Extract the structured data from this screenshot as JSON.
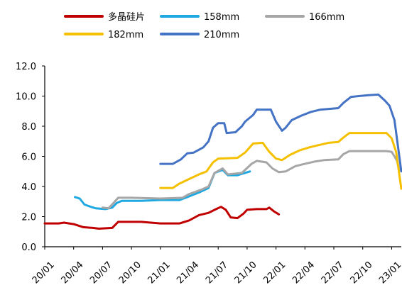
{
  "chart_data": {
    "type": "line",
    "title": "",
    "xlabel": "",
    "ylabel": "",
    "ylim": [
      0,
      12
    ],
    "yticks": [
      "0.0",
      "2.0",
      "4.0",
      "6.0",
      "8.0",
      "10.0",
      "12.0"
    ],
    "x_range": [
      "2020-01",
      "2023-02"
    ],
    "xticks": [
      {
        "value": "2020-01",
        "label": "20/01"
      },
      {
        "value": "2020-04",
        "label": "20/04"
      },
      {
        "value": "2020-07",
        "label": "20/07"
      },
      {
        "value": "2020-10",
        "label": "20/10"
      },
      {
        "value": "2021-01",
        "label": "21/01"
      },
      {
        "value": "2021-04",
        "label": "21/04"
      },
      {
        "value": "2021-07",
        "label": "21/07"
      },
      {
        "value": "2021-10",
        "label": "21/10"
      },
      {
        "value": "2022-01",
        "label": "22/01"
      },
      {
        "value": "2022-04",
        "label": "22/04"
      },
      {
        "value": "2022-07",
        "label": "22/07"
      },
      {
        "value": "2022-10",
        "label": "22/10"
      },
      {
        "value": "2023-01",
        "label": "23/01"
      }
    ],
    "grid": false,
    "legend": "top",
    "series": [
      {
        "name": "多晶硅片",
        "color": "#C00000",
        "points": [
          [
            "2020-01-01",
            1.55
          ],
          [
            "2020-02-15",
            1.55
          ],
          [
            "2020-03-01",
            1.6
          ],
          [
            "2020-04-01",
            1.5
          ],
          [
            "2020-05-01",
            1.3
          ],
          [
            "2020-06-01",
            1.25
          ],
          [
            "2020-06-20",
            1.2
          ],
          [
            "2020-08-01",
            1.25
          ],
          [
            "2020-08-20",
            1.65
          ],
          [
            "2020-11-01",
            1.65
          ],
          [
            "2021-01-01",
            1.55
          ],
          [
            "2021-03-01",
            1.55
          ],
          [
            "2021-04-01",
            1.75
          ],
          [
            "2021-05-01",
            2.1
          ],
          [
            "2021-06-01",
            2.25
          ],
          [
            "2021-06-25",
            2.5
          ],
          [
            "2021-07-10",
            2.65
          ],
          [
            "2021-07-25",
            2.45
          ],
          [
            "2021-08-10",
            1.95
          ],
          [
            "2021-09-01",
            1.9
          ],
          [
            "2021-09-20",
            2.2
          ],
          [
            "2021-10-01",
            2.45
          ],
          [
            "2021-11-01",
            2.5
          ],
          [
            "2021-12-01",
            2.5
          ],
          [
            "2021-12-10",
            2.6
          ],
          [
            "2021-12-25",
            2.35
          ],
          [
            "2022-01-10",
            2.15
          ]
        ]
      },
      {
        "name": "158mm",
        "color": "#1FA9E0",
        "points": [
          [
            "2020-04-05",
            3.3
          ],
          [
            "2020-04-20",
            3.2
          ],
          [
            "2020-05-05",
            2.8
          ],
          [
            "2020-05-25",
            2.65
          ],
          [
            "2020-06-10",
            2.55
          ],
          [
            "2020-07-10",
            2.5
          ],
          [
            "2020-08-01",
            2.6
          ],
          [
            "2020-08-15",
            2.9
          ],
          [
            "2020-09-01",
            3.05
          ],
          [
            "2020-11-01",
            3.05
          ],
          [
            "2021-01-01",
            3.1
          ],
          [
            "2021-03-01",
            3.1
          ],
          [
            "2021-03-20",
            3.25
          ],
          [
            "2021-05-01",
            3.6
          ],
          [
            "2021-06-01",
            3.9
          ],
          [
            "2021-06-20",
            4.9
          ],
          [
            "2021-07-15",
            5.1
          ],
          [
            "2021-08-01",
            4.75
          ],
          [
            "2021-09-01",
            4.75
          ],
          [
            "2021-10-10",
            5.0
          ]
        ]
      },
      {
        "name": "166mm",
        "color": "#A6A6A6",
        "points": [
          [
            "2020-07-01",
            2.6
          ],
          [
            "2020-07-20",
            2.55
          ],
          [
            "2020-08-05",
            2.9
          ],
          [
            "2020-08-20",
            3.25
          ],
          [
            "2020-10-01",
            3.25
          ],
          [
            "2021-01-01",
            3.2
          ],
          [
            "2021-03-10",
            3.25
          ],
          [
            "2021-04-01",
            3.5
          ],
          [
            "2021-05-10",
            3.8
          ],
          [
            "2021-06-01",
            4.0
          ],
          [
            "2021-06-20",
            4.9
          ],
          [
            "2021-07-15",
            5.2
          ],
          [
            "2021-08-01",
            4.8
          ],
          [
            "2021-09-15",
            4.9
          ],
          [
            "2021-10-15",
            5.5
          ],
          [
            "2021-11-01",
            5.7
          ],
          [
            "2021-12-01",
            5.6
          ],
          [
            "2021-12-20",
            5.2
          ],
          [
            "2022-01-10",
            4.95
          ],
          [
            "2022-02-01",
            5.0
          ],
          [
            "2022-03-01",
            5.35
          ],
          [
            "2022-04-01",
            5.5
          ],
          [
            "2022-05-01",
            5.65
          ],
          [
            "2022-06-01",
            5.75
          ],
          [
            "2022-07-15",
            5.8
          ],
          [
            "2022-08-01",
            6.15
          ],
          [
            "2022-08-20",
            6.35
          ],
          [
            "2022-12-15",
            6.35
          ],
          [
            "2023-01-01",
            6.3
          ],
          [
            "2023-01-10",
            6.0
          ],
          [
            "2023-01-18",
            5.7
          ],
          [
            "2023-01-25",
            5.1
          ]
        ]
      },
      {
        "name": "182mm",
        "color": "#F5C000",
        "points": [
          [
            "2021-01-01",
            3.9
          ],
          [
            "2021-02-10",
            3.9
          ],
          [
            "2021-03-01",
            4.2
          ],
          [
            "2021-04-01",
            4.5
          ],
          [
            "2021-05-01",
            4.8
          ],
          [
            "2021-05-25",
            5.0
          ],
          [
            "2021-06-15",
            5.6
          ],
          [
            "2021-07-01",
            5.85
          ],
          [
            "2021-09-01",
            5.9
          ],
          [
            "2021-09-25",
            6.25
          ],
          [
            "2021-10-20",
            6.85
          ],
          [
            "2021-11-20",
            6.9
          ],
          [
            "2021-12-10",
            6.3
          ],
          [
            "2022-01-01",
            5.85
          ],
          [
            "2022-01-20",
            5.75
          ],
          [
            "2022-02-15",
            6.1
          ],
          [
            "2022-03-15",
            6.4
          ],
          [
            "2022-04-15",
            6.6
          ],
          [
            "2022-05-15",
            6.75
          ],
          [
            "2022-06-15",
            6.9
          ],
          [
            "2022-07-15",
            6.95
          ],
          [
            "2022-08-01",
            7.25
          ],
          [
            "2022-08-20",
            7.55
          ],
          [
            "2022-12-15",
            7.55
          ],
          [
            "2023-01-01",
            7.2
          ],
          [
            "2023-01-15",
            6.3
          ],
          [
            "2023-02-01",
            3.85
          ]
        ]
      },
      {
        "name": "210mm",
        "color": "#4472C4",
        "points": [
          [
            "2021-01-01",
            5.5
          ],
          [
            "2021-02-10",
            5.5
          ],
          [
            "2021-03-05",
            5.8
          ],
          [
            "2021-03-25",
            6.2
          ],
          [
            "2021-04-15",
            6.25
          ],
          [
            "2021-05-15",
            6.6
          ],
          [
            "2021-06-01",
            7.0
          ],
          [
            "2021-06-15",
            7.9
          ],
          [
            "2021-07-01",
            8.2
          ],
          [
            "2021-07-20",
            8.2
          ],
          [
            "2021-07-28",
            7.55
          ],
          [
            "2021-08-25",
            7.6
          ],
          [
            "2021-09-15",
            8.0
          ],
          [
            "2021-09-25",
            8.3
          ],
          [
            "2021-10-20",
            8.75
          ],
          [
            "2021-11-01",
            9.1
          ],
          [
            "2021-12-15",
            9.1
          ],
          [
            "2022-01-01",
            8.3
          ],
          [
            "2022-01-20",
            7.7
          ],
          [
            "2022-02-01",
            7.9
          ],
          [
            "2022-02-20",
            8.4
          ],
          [
            "2022-03-20",
            8.7
          ],
          [
            "2022-04-20",
            8.95
          ],
          [
            "2022-05-20",
            9.1
          ],
          [
            "2022-07-15",
            9.2
          ],
          [
            "2022-08-01",
            9.55
          ],
          [
            "2022-08-25",
            9.95
          ],
          [
            "2022-10-15",
            10.05
          ],
          [
            "2022-11-20",
            10.1
          ],
          [
            "2022-12-10",
            9.7
          ],
          [
            "2022-12-25",
            9.35
          ],
          [
            "2023-01-10",
            8.4
          ],
          [
            "2023-01-22",
            6.5
          ],
          [
            "2023-02-01",
            5.0
          ]
        ]
      }
    ]
  }
}
